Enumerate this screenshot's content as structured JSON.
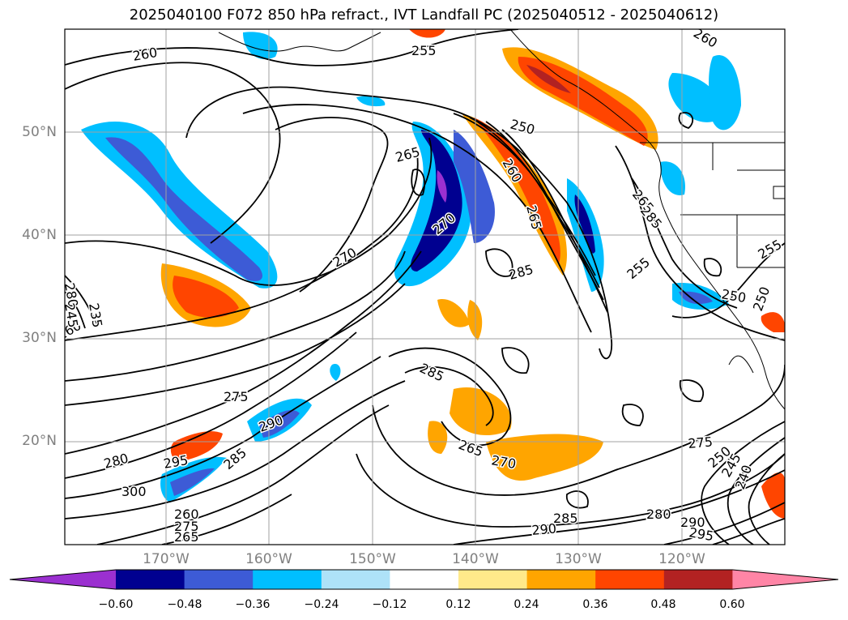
{
  "title": "2025040100 F072 850 hPa refract., IVT Landfall PC (2025040512 - 2025040612)",
  "lat_labels": [
    "50°N",
    "40°N",
    "30°N",
    "20°N"
  ],
  "lon_labels": [
    "170°W",
    "160°W",
    "150°W",
    "140°W",
    "130°W",
    "120°W"
  ],
  "colorbar": {
    "colors": [
      "#9b30d0",
      "#000090",
      "#3d5bd6",
      "#00bfff",
      "#aee2f8",
      "#ffffff",
      "#ffe98a",
      "#ffa500",
      "#ff4500",
      "#b22222",
      "#ff85a6"
    ],
    "labels": [
      "−0.60",
      "−0.48",
      "−0.36",
      "−0.24",
      "−0.12",
      "0.12",
      "0.24",
      "0.36",
      "0.48",
      "0.60"
    ]
  },
  "contour_labels": [
    "260",
    "255",
    "250",
    "265",
    "260",
    "265",
    "270",
    "270",
    "285",
    "285",
    "275",
    "290",
    "285",
    "280",
    "295",
    "300",
    "265",
    "270",
    "285",
    "290",
    "280",
    "290",
    "295",
    "275",
    "250",
    "245",
    "240",
    "255",
    "250",
    "250",
    "255",
    "265",
    "285",
    "280",
    "260",
    "245",
    "235",
    "260",
    "275",
    "265",
    "260"
  ]
}
